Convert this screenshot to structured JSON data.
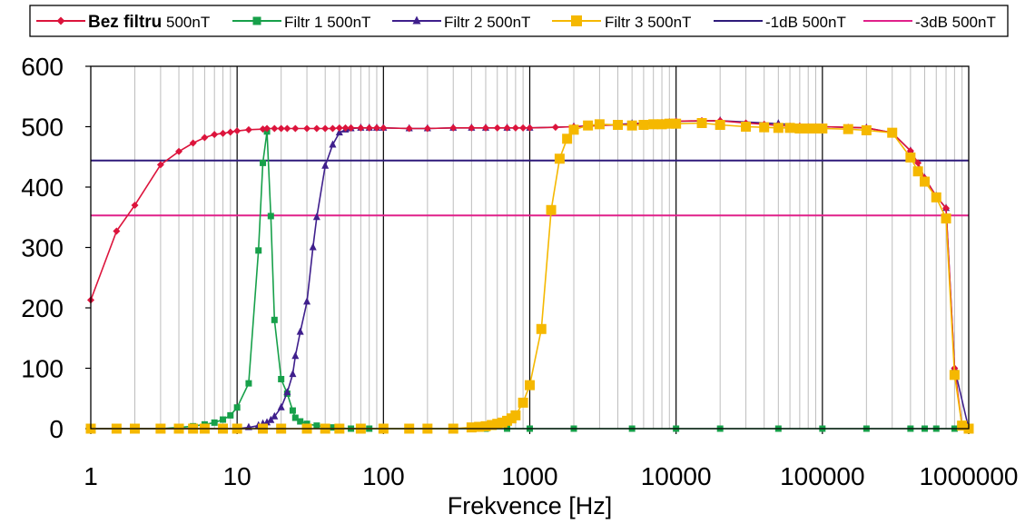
{
  "chart_data": {
    "type": "line",
    "title": "",
    "xlabel": "Frekvence [Hz]",
    "ylabel": "",
    "xscale": "log",
    "xlim": [
      1,
      1000000
    ],
    "ylim": [
      0,
      600
    ],
    "yticks": [
      0,
      100,
      200,
      300,
      400,
      500,
      600
    ],
    "yticklabels": [
      "0",
      "100",
      "200",
      "300",
      "400",
      "500",
      "600"
    ],
    "xticks": [
      1,
      10,
      100,
      1000,
      10000,
      100000,
      1000000
    ],
    "xticklabels": [
      "1",
      "10",
      "100",
      "1000",
      "10000",
      "100000",
      "1000000"
    ],
    "grid": "vertical minor (gray) and major (black) lines",
    "legend": "top",
    "series": [
      {
        "name": "Bez filtru",
        "name_suffix": "500nT",
        "color": "#dc143c",
        "marker": "diamond",
        "x": [
          1,
          1.5,
          2,
          3,
          4,
          5,
          6,
          7,
          8,
          9,
          10,
          12,
          15,
          16,
          18,
          20,
          22,
          25,
          30,
          35,
          40,
          45,
          50,
          55,
          60,
          70,
          80,
          90,
          100,
          150,
          200,
          300,
          400,
          500,
          600,
          700,
          800,
          900,
          1000,
          1500,
          2000,
          2500,
          3000,
          4000,
          5000,
          6000,
          7000,
          8000,
          9000,
          10000,
          15000,
          20000,
          30000,
          40000,
          50000,
          60000,
          70000,
          80000,
          90000,
          100000,
          150000,
          200000,
          300000,
          400000,
          450000,
          500000,
          600000,
          700000,
          800000,
          900000,
          1000000
        ],
        "y": [
          213,
          327,
          370,
          437,
          459,
          473,
          482,
          487,
          489,
          491,
          493,
          495,
          496,
          497,
          497,
          497,
          497,
          497,
          497,
          497,
          497,
          497,
          498,
          498,
          498,
          498,
          498,
          498,
          498,
          497,
          497,
          498,
          498,
          498,
          498,
          498,
          498,
          498,
          498,
          499,
          500,
          501,
          502,
          503,
          504,
          505,
          506,
          507,
          508,
          509,
          510,
          510,
          506,
          504,
          502,
          501,
          501,
          500,
          500,
          500,
          499,
          498,
          490,
          460,
          440,
          415,
          385,
          365,
          100,
          5,
          0
        ]
      },
      {
        "name": "Filtr  1",
        "name_suffix": "500nT",
        "color": "#17a04a",
        "marker": "square",
        "x": [
          1,
          1.5,
          2,
          3,
          4,
          5,
          6,
          7,
          8,
          9,
          10,
          12,
          14,
          15,
          16,
          17,
          18,
          20,
          22,
          24,
          25,
          27,
          30,
          35,
          40,
          45,
          50,
          60,
          70,
          80,
          100,
          150,
          200,
          300,
          400,
          500,
          700,
          1000,
          2000,
          5000,
          10000,
          20000,
          50000,
          100000,
          200000,
          400000,
          500000,
          600000,
          800000,
          1000000
        ],
        "y": [
          0,
          0,
          0,
          0,
          2,
          4,
          7,
          10,
          15,
          22,
          35,
          75,
          295,
          440,
          492,
          352,
          180,
          82,
          58,
          30,
          18,
          12,
          8,
          5,
          3,
          2,
          1,
          0,
          0,
          0,
          0,
          0,
          0,
          0,
          0,
          0,
          0,
          0,
          0,
          0,
          0,
          0,
          0,
          0,
          0,
          0,
          0,
          0,
          0,
          0
        ]
      },
      {
        "name": "Filtr  2",
        "name_suffix": "500nT",
        "color": "#3f1f8c",
        "marker": "triangle",
        "x": [
          1,
          2,
          3,
          5,
          8,
          10,
          12,
          14,
          15,
          16,
          17,
          18,
          20,
          22,
          24,
          25,
          27,
          30,
          33,
          35,
          40,
          45,
          50,
          55,
          60,
          70,
          80,
          90,
          100,
          150,
          200,
          300,
          400,
          500,
          700,
          1000,
          2000,
          5000,
          10000,
          20000,
          50000,
          100000,
          200000,
          300000,
          400000,
          500000,
          600000,
          700000,
          800000,
          1000000
        ],
        "y": [
          0,
          0,
          0,
          0,
          0,
          0,
          2,
          5,
          8,
          10,
          14,
          20,
          35,
          60,
          90,
          120,
          160,
          210,
          300,
          350,
          435,
          470,
          490,
          495,
          497,
          498,
          498,
          498,
          498,
          497,
          497,
          498,
          498,
          498,
          498,
          498,
          500,
          505,
          509,
          510,
          505,
          500,
          498,
          490,
          460,
          415,
          385,
          365,
          100,
          0
        ]
      },
      {
        "name": "Filtr  3",
        "name_suffix": "500nT",
        "color": "#f5b800",
        "marker": "square",
        "x": [
          1,
          1.5,
          2,
          3,
          4,
          5,
          6,
          8,
          10,
          15,
          20,
          30,
          40,
          50,
          70,
          100,
          150,
          200,
          300,
          400,
          450,
          500,
          550,
          600,
          650,
          700,
          750,
          800,
          900,
          1000,
          1200,
          1400,
          1600,
          1800,
          2000,
          2500,
          3000,
          4000,
          5000,
          6000,
          7000,
          8000,
          9000,
          10000,
          15000,
          20000,
          30000,
          40000,
          50000,
          60000,
          70000,
          80000,
          90000,
          100000,
          150000,
          200000,
          300000,
          400000,
          450000,
          500000,
          600000,
          700000,
          800000,
          900000,
          1000000
        ],
        "y": [
          0,
          0,
          0,
          0,
          0,
          0,
          0,
          0,
          0,
          0,
          0,
          0,
          0,
          0,
          0,
          0,
          0,
          0,
          0,
          2,
          3,
          4,
          6,
          8,
          10,
          13,
          17,
          22,
          43,
          72,
          165,
          362,
          447,
          480,
          495,
          502,
          504,
          503,
          502,
          503,
          504,
          504,
          505,
          505,
          506,
          503,
          500,
          499,
          498,
          498,
          497,
          497,
          497,
          497,
          496,
          494,
          490,
          449,
          426,
          409,
          383,
          348,
          89,
          5,
          0
        ]
      },
      {
        "name": "-1dB",
        "name_suffix": "500nT",
        "color": "#2e1a7a",
        "marker": "none",
        "x": [
          1,
          1000000
        ],
        "y": [
          444,
          444
        ]
      },
      {
        "name": "-3dB",
        "name_suffix": "500nT",
        "color": "#e0208a",
        "marker": "none",
        "x": [
          1,
          1000000
        ],
        "y": [
          353,
          353
        ]
      }
    ]
  }
}
